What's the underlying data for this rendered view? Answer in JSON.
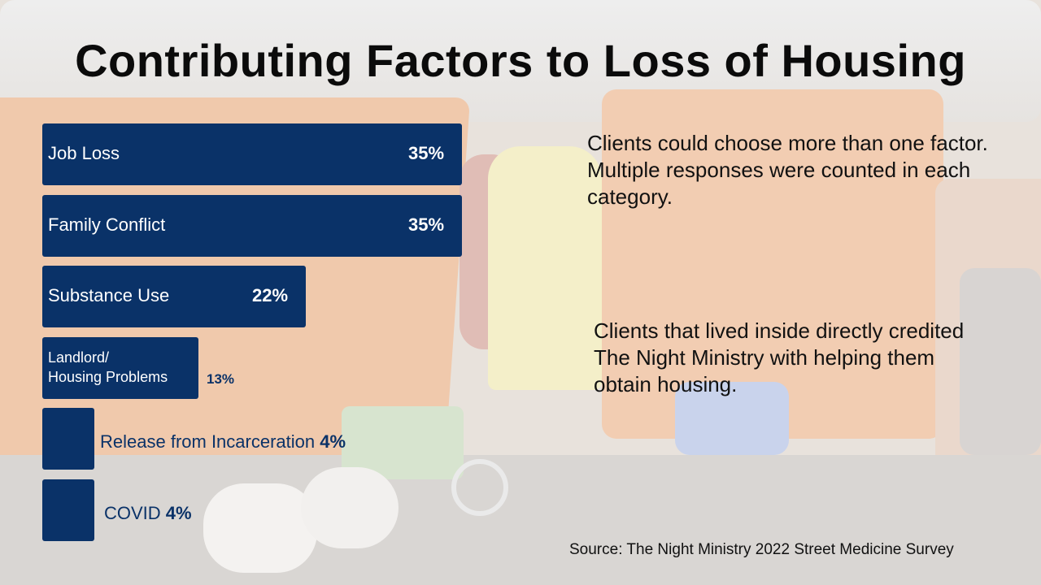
{
  "title": "Contributing Factors to Loss of Housing",
  "chart_data": {
    "type": "bar",
    "orientation": "horizontal",
    "categories": [
      "Job Loss",
      "Family Conflict",
      "Substance Use",
      "Landlord/\nHousing Problems",
      "Release from Incarceration",
      "COVID"
    ],
    "values": [
      35,
      35,
      22,
      13,
      4,
      4
    ],
    "value_labels": [
      "35%",
      "35%",
      "22%",
      "13%",
      "4%",
      "4%"
    ],
    "bar_color": "#0a3268",
    "grid": false
  },
  "notes": {
    "multiple": "Clients could choose more than one factor. Multiple responses were counted in each category.",
    "credited": "Clients that lived inside directly credited The Night Ministry with helping them obtain housing."
  },
  "source": "Source: The Night Ministry 2022 Street Medicine Survey"
}
